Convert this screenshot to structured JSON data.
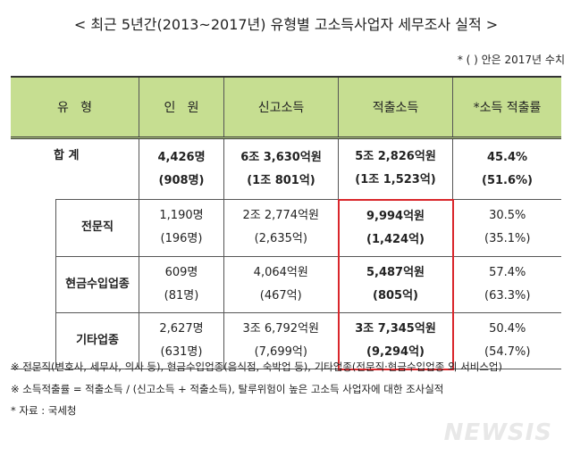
{
  "title": "< 최근 5년간(2013~2017년) 유형별 고소득사업자 세무조사 실적 >",
  "note": "* (      ) 안은 2017년 수치",
  "headers": [
    "유   형",
    "인   원",
    "신고소득",
    "적출소득",
    "*소득 적출률"
  ],
  "rows": [
    {
      "type": "합 계",
      "people": "4,426명",
      "people_2017": "(908명)",
      "reported": "6조 3,630억원",
      "reported_2017": "(1조 801억)",
      "detected": "5조 2,826억원",
      "detected_2017": "(1조 1,523억)",
      "rate": "45.4%",
      "rate_2017": "(51.6%)"
    },
    {
      "type": "전문직",
      "people": "1,190명",
      "people_2017": "(196명)",
      "reported": "2조 2,774억원",
      "reported_2017": "(2,635억)",
      "detected": "9,994억원",
      "detected_2017": "(1,424억)",
      "rate": "30.5%",
      "rate_2017": "(35.1%)"
    },
    {
      "type": "현금수입업종",
      "people": "609명",
      "people_2017": "(81명)",
      "reported": "4,064억원",
      "reported_2017": "(467억)",
      "detected": "5,487억원",
      "detected_2017": "(805억)",
      "rate": "57.4%",
      "rate_2017": "(63.3%)"
    },
    {
      "type": "기타업종",
      "people": "2,627명",
      "people_2017": "(631명)",
      "reported": "3조 6,792억원",
      "reported_2017": "(7,699억)",
      "detected": "3조 7,345억원",
      "detected_2017": "(9,294억)",
      "rate": "50.4%",
      "rate_2017": "(54.7%)"
    }
  ],
  "footnotes": [
    "※ 전문직(변호사, 세무사, 의사 등), 현금수입업종(음식점, 숙박업 등), 기타업종(전문직·현금수입업종 외 서비스업)",
    "※ 소득적출률 = 적출소득 / (신고소득 + 적출소득), 탈루위험이 높은 고소득 사업자에 대한 조사실적",
    "* 자료 : 국세청"
  ],
  "logo": "NEWSIS",
  "colors": {
    "header_bg": "#c6de91",
    "highlight": "#d9262b"
  }
}
